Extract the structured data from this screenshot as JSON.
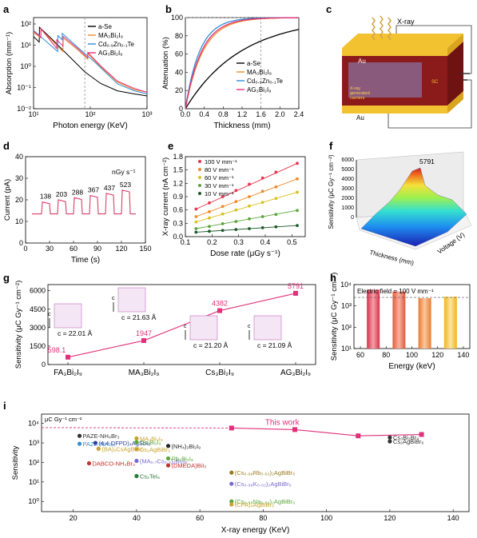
{
  "colors": {
    "a_se": "#000000",
    "ma3bi2i9": "#f08a2a",
    "czt": "#2f8fd8",
    "ag3bi2i9": "#e0307a",
    "current": "#e33a6a",
    "line100": "#e8344e",
    "line80": "#ef8a2c",
    "line60": "#d8c21f",
    "line30": "#5aa63a",
    "line10": "#1f5a2a",
    "accent": "#e0307a"
  },
  "panel_labels": {
    "a": "a",
    "b": "b",
    "c": "c",
    "d": "d",
    "e": "e",
    "f": "f",
    "g": "g",
    "h": "h",
    "i": "i"
  },
  "chart_data": [
    {
      "id": "a",
      "type": "line",
      "xlabel": "Photon energy (KeV)",
      "ylabel": "Absorption (mm⁻¹)",
      "xscale": "log",
      "yscale": "log",
      "xlim": [
        10,
        1000
      ],
      "ylim": [
        0.01,
        200
      ],
      "xticks": [
        "10¹",
        "10²",
        "10³"
      ],
      "yticks": [
        "10⁻²",
        "10⁻¹",
        "10⁰",
        "10¹",
        "10²"
      ],
      "series": [
        {
          "name": "a-Se",
          "color": "#000000",
          "x": [
            10,
            12.6,
            12.7,
            20,
            40,
            80,
            150,
            300,
            600,
            1000
          ],
          "y": [
            25,
            14,
            70,
            22,
            3.5,
            0.55,
            0.16,
            0.07,
            0.05,
            0.04
          ]
        },
        {
          "name": "MA₃Bi₂I₉",
          "color": "#f08a2a",
          "x": [
            10,
            13.4,
            13.5,
            33,
            33.2,
            60,
            90,
            90.5,
            150,
            300,
            600,
            1000
          ],
          "y": [
            40,
            22,
            55,
            5,
            22,
            6,
            2.2,
            4,
            1.0,
            0.18,
            0.08,
            0.06
          ]
        },
        {
          "name": "Cd₀.₉Zn₀.₁Te",
          "color": "#2f8fd8",
          "x": [
            10,
            26.7,
            26.8,
            31.8,
            32,
            60,
            120,
            300,
            600,
            1000
          ],
          "y": [
            50,
            5,
            28,
            18,
            36,
            8,
            1.6,
            0.15,
            0.07,
            0.05
          ]
        },
        {
          "name": "AG₃Bi₂I₉",
          "color": "#e0307a",
          "x": [
            10,
            13.4,
            13.5,
            25.5,
            25.6,
            33,
            33.2,
            60,
            90,
            90.5,
            150,
            300,
            600,
            1000
          ],
          "y": [
            45,
            24,
            60,
            7,
            18,
            9,
            26,
            7,
            2.5,
            4.5,
            1.1,
            0.2,
            0.09,
            0.06
          ]
        }
      ]
    },
    {
      "id": "b",
      "type": "line",
      "xlabel": "Thickness (mm)",
      "ylabel": "Attenuation (%)",
      "xlim": [
        0,
        2.4
      ],
      "ylim": [
        0,
        100
      ],
      "xticks": [
        "0.0",
        "0.4",
        "0.8",
        "1.2",
        "1.6",
        "2.0",
        "2.4"
      ],
      "yticks": [
        "0",
        "20",
        "40",
        "60",
        "80",
        "100"
      ],
      "series": [
        {
          "name": "a-Se",
          "color": "#000000",
          "coef": 0.85
        },
        {
          "name": "MA₃Bi₂I₉",
          "color": "#f08a2a",
          "coef": 2.7
        },
        {
          "name": "Cd₀.₉Zn₀.₁Te",
          "color": "#2f8fd8",
          "coef": 3.3
        },
        {
          "name": "AG₃Bi₂I₉",
          "color": "#e0307a",
          "coef": 2.9
        }
      ]
    },
    {
      "id": "d",
      "type": "line",
      "xlabel": "Time (s)",
      "ylabel": "Current (pA)",
      "xlim": [
        0,
        150
      ],
      "ylim": [
        0,
        40
      ],
      "xticks": [
        "0",
        "30",
        "60",
        "90",
        "120",
        "150"
      ],
      "yticks": [
        "0",
        "10",
        "20",
        "30",
        "40"
      ],
      "unit_label": "nGy s⁻¹",
      "dose_rates": [
        "138",
        "203",
        "288",
        "367",
        "437",
        "523"
      ],
      "baseline": 13.5,
      "on_levels": [
        19,
        20,
        21,
        22,
        23,
        24.5
      ],
      "on_starts": [
        20,
        40,
        60,
        80,
        100,
        120
      ],
      "on_length": 10
    },
    {
      "id": "e",
      "type": "scatter",
      "xlabel": "Dose rate (μGy s⁻¹)",
      "ylabel": "X-ray current (nA cm⁻²)",
      "xlim": [
        0.1,
        0.55
      ],
      "ylim": [
        0,
        1.8
      ],
      "xticks": [
        "0.1",
        "0.2",
        "0.3",
        "0.4",
        "0.5"
      ],
      "yticks": [
        "0.0",
        "0.3",
        "0.6",
        "0.9",
        "1.2",
        "1.5",
        "1.8"
      ],
      "x": [
        0.14,
        0.19,
        0.24,
        0.29,
        0.34,
        0.39,
        0.44,
        0.52
      ],
      "series": [
        {
          "name": "100 V mm⁻¹",
          "color": "#e8344e",
          "y": [
            0.62,
            0.76,
            0.9,
            1.04,
            1.18,
            1.32,
            1.45,
            1.65
          ]
        },
        {
          "name": "80 V mm⁻¹",
          "color": "#ef8a2c",
          "y": [
            0.45,
            0.56,
            0.68,
            0.79,
            0.9,
            1.02,
            1.12,
            1.3
          ]
        },
        {
          "name": "60 V mm⁻¹",
          "color": "#d8c21f",
          "y": [
            0.33,
            0.42,
            0.51,
            0.6,
            0.69,
            0.77,
            0.86,
            1.0
          ]
        },
        {
          "name": "30 V mm⁻¹",
          "color": "#5aa63a",
          "y": [
            0.18,
            0.23,
            0.29,
            0.34,
            0.4,
            0.45,
            0.5,
            0.59
          ]
        },
        {
          "name": "10 V mm⁻¹",
          "color": "#1f5a2a",
          "y": [
            0.1,
            0.12,
            0.14,
            0.16,
            0.18,
            0.2,
            0.22,
            0.25
          ]
        }
      ]
    },
    {
      "id": "f",
      "type": "heatmap",
      "zlabel": "Sensitivity (μC Gy⁻¹ cm⁻²)",
      "xlabel": "Thickness (mm)",
      "ylabel": "Voltage (V)",
      "zticks": [
        "0",
        "1000",
        "2000",
        "3000",
        "4000",
        "5000",
        "6000"
      ],
      "peak_label": "5791"
    },
    {
      "id": "g",
      "type": "line",
      "ylabel": "Sensitivity (μC Gy⁻¹ cm⁻²)",
      "categories": [
        "FA₃Bi₂I₉",
        "MA₃Bi₂I₉",
        "Cs₃Bi₂I₉",
        "AG₃Bi₂I₉"
      ],
      "values": [
        598.1,
        1947,
        4382,
        5791
      ],
      "value_labels": [
        "598.1",
        "1947",
        "4382",
        "5791"
      ],
      "spacings": [
        "c = 22.01 Å",
        "c = 21.63 Å",
        "c = 21.20 Å",
        "c = 21.09 Å"
      ],
      "axis_letter": "c",
      "ylim": [
        0,
        6500
      ],
      "yticks": [
        "0",
        "1500",
        "3000",
        "4500",
        "6000"
      ]
    },
    {
      "id": "h",
      "type": "bar",
      "xlabel": "Energy (keV)",
      "ylabel": "Sensitivity (μC Gy⁻¹ cm⁻²)",
      "annotation": "Electric field = 100 V mm⁻¹",
      "yscale": "log",
      "ylim": [
        10,
        10000
      ],
      "xlim": [
        55,
        145
      ],
      "x": [
        70,
        90,
        110,
        130
      ],
      "values": [
        5791,
        4800,
        2300,
        2700
      ],
      "reference": 2500,
      "xticks": [
        "60",
        "70",
        "80",
        "90",
        "100",
        "110",
        "120",
        "130",
        "140"
      ],
      "yticks": [
        "10¹",
        "10²",
        "10³",
        "10⁴"
      ]
    },
    {
      "id": "i",
      "type": "scatter",
      "xlabel": "X-ray energy (KeV)",
      "ylabel": "Sensitivity",
      "unit_label": "μC Gy⁻¹ cm⁻²",
      "yscale": "log",
      "xlim": [
        10,
        145
      ],
      "ylim": [
        0.3,
        30000
      ],
      "xticks": [
        "20",
        "40",
        "60",
        "80",
        "100",
        "120",
        "140"
      ],
      "yticks": [
        "10⁰",
        "10¹",
        "10²",
        "10³",
        "10⁴"
      ],
      "this_work": {
        "name": "This work",
        "x": [
          70,
          90,
          110,
          130
        ],
        "y": [
          5791,
          4800,
          2300,
          2700
        ]
      },
      "points": [
        {
          "label": "PAZE-NH₄Br₃",
          "x": 22,
          "y": 2300,
          "color": "#333333"
        },
        {
          "label": "PAZE-NH₄I₃",
          "x": 22,
          "y": 900,
          "color": "#2f8fd8"
        },
        {
          "label": "(4,4-DFPD)₄AgSbI₈",
          "x": 27,
          "y": 1000,
          "color": "#2f3f9a"
        },
        {
          "label": "(BA)₂CsAgBiBr₇",
          "x": 28,
          "y": 500,
          "color": "#c9a32a"
        },
        {
          "label": "Cs₂AgBiBr₆",
          "x": 40,
          "y": 480,
          "color": "#c9a32a"
        },
        {
          "label": "DABCO-NH₄Br₃",
          "x": 25,
          "y": 90,
          "color": "#c43030"
        },
        {
          "label": "MA₃Bi₂I₉",
          "x": 40,
          "y": 1700,
          "color": "#c9a32a"
        },
        {
          "label": "Cs₃Bi₂I₉",
          "x": 40,
          "y": 1100,
          "color": "#5aa63a"
        },
        {
          "label": "(MA₀.₇Cs₀.₃)₃Bi₂I₉",
          "x": 40,
          "y": 120,
          "color": "#7a6ad0"
        },
        {
          "label": "Cs₂TeI₆",
          "x": 40,
          "y": 20,
          "color": "#2a7a3a"
        },
        {
          "label": "(NH₄)₃Bi₂I₉",
          "x": 50,
          "y": 700,
          "color": "#222222"
        },
        {
          "label": "Rb₃Bi₂I₉",
          "x": 50,
          "y": 160,
          "color": "#5aa63a"
        },
        {
          "label": "(DMEDA)BiI₅",
          "x": 50,
          "y": 70,
          "color": "#c43030"
        },
        {
          "label": "(Cs₀.₉₈Rb₀.₀₂)₂AgBiBr₆",
          "x": 70,
          "y": 30,
          "color": "#9a7a1a"
        },
        {
          "label": "(Cs₀.₉₈K₀.₀₂)₂AgBiBr₆",
          "x": 70,
          "y": 8,
          "color": "#7a6ad0"
        },
        {
          "label": "(Cs₀.₉₈Na₀.₀₂)₂AgBiBr₆",
          "x": 70,
          "y": 1.0,
          "color": "#5aa63a"
        },
        {
          "label": "(CPA)₄AgBiBr₈",
          "x": 70,
          "y": 0.7,
          "color": "#c9a32a"
        },
        {
          "label": "Cs₂AgBiBr₆",
          "x": 120,
          "y": 1200,
          "color": "#333333"
        },
        {
          "label": "Cs₃Bi₂Br₉",
          "x": 120,
          "y": 1900,
          "color": "#333333"
        }
      ]
    }
  ],
  "schematic_c": {
    "xray_label": "X-ray",
    "top_electrode": "Au",
    "bottom_electrode": "Au",
    "crystal_label": "SC",
    "carriers_label": "X-ray\ngenerated\ncarriers"
  }
}
